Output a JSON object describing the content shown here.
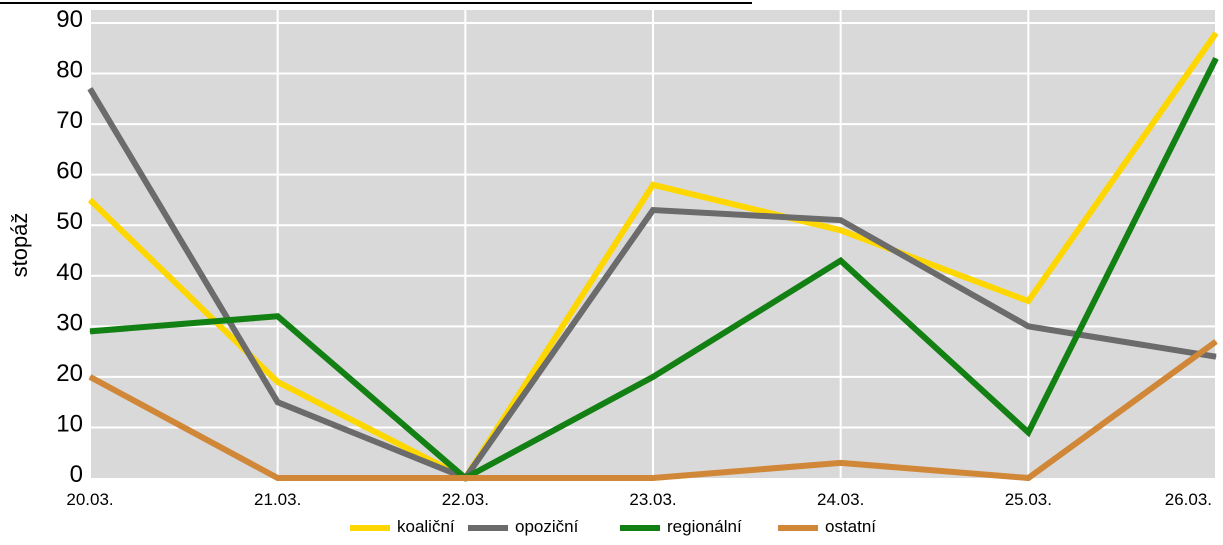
{
  "chart_data": {
    "type": "line",
    "ylabel": "stopáž",
    "xlabel": "",
    "ylim": [
      0,
      90
    ],
    "y_ticks": [
      "0",
      "10",
      "20",
      "30",
      "40",
      "50",
      "60",
      "70",
      "80",
      "90"
    ],
    "categories": [
      "20.03.",
      "21.03.",
      "22.03.",
      "23.03.",
      "24.03.",
      "25.03.",
      "26.03."
    ],
    "grid": true,
    "legend_position": "bottom",
    "series": [
      {
        "name": "koaliční",
        "color": "#FFD700",
        "values": [
          55,
          19,
          0,
          58,
          49,
          35,
          88
        ]
      },
      {
        "name": "opoziční",
        "color": "#6B6B6B",
        "values": [
          77,
          15,
          0,
          53,
          51,
          30,
          24
        ]
      },
      {
        "name": "regionální",
        "color": "#138013",
        "values": [
          29,
          32,
          0,
          20,
          43,
          9,
          83
        ]
      },
      {
        "name": "ostatní",
        "color": "#D08738",
        "values": [
          20,
          0,
          0,
          0,
          3,
          0,
          27
        ]
      }
    ],
    "background_color": "#D9D9D9",
    "grid_color": "#FFFFFF"
  }
}
